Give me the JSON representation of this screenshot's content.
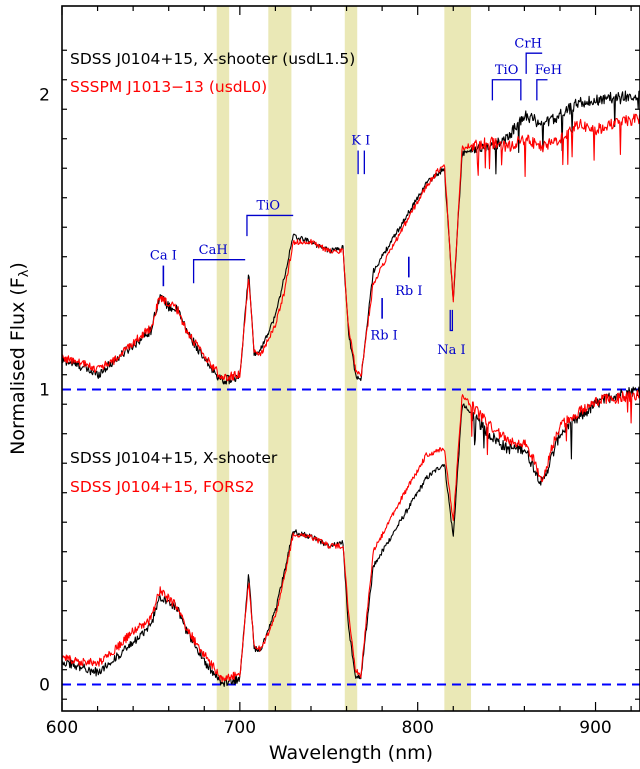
{
  "chart_data": {
    "type": "line",
    "xlabel": "Wavelength (nm)",
    "ylabel": "Normalised Flux  (F",
    "ylabel_sub": "λ",
    "ylabel_close": ")",
    "xlim": [
      600,
      925
    ],
    "ylim": [
      -0.09,
      2.3
    ],
    "xticks": [
      600,
      700,
      800,
      900
    ],
    "yticks": [
      0,
      1,
      2
    ],
    "reference_lines": [
      0,
      1
    ],
    "shaded_bands": [
      [
        687,
        694
      ],
      [
        716,
        729
      ],
      [
        759,
        766
      ],
      [
        815,
        830
      ]
    ],
    "upper_legend": [
      {
        "text": "SDSS J0104+15, X-shooter (usdL1.5)",
        "color": "#000000"
      },
      {
        "text": "SSSPM J1013−13 (usdL0)",
        "color": "#ff0000"
      }
    ],
    "lower_legend": [
      {
        "text": "SDSS J0104+15, X-shooter",
        "color": "#000000"
      },
      {
        "text": "SDSS J0104+15, FORS2",
        "color": "#ff0000"
      }
    ],
    "line_annotations": [
      {
        "label": "Ca I",
        "wavelength": 657
      },
      {
        "label": "CaH",
        "wavelength": 685
      },
      {
        "label": "TiO",
        "wavelength": 716
      },
      {
        "label": "K I",
        "wavelength": 768
      },
      {
        "label": "Rb I",
        "wavelength": 780
      },
      {
        "label": "Rb I",
        "wavelength": 795
      },
      {
        "label": "Na I",
        "wavelength": 819
      },
      {
        "label": "TiO",
        "wavelength": 850
      },
      {
        "label": "CrH",
        "wavelength": 861
      },
      {
        "label": "FeH",
        "wavelength": 869
      }
    ],
    "series": [
      {
        "name": "SDSS J0104+15, X-shooter (usdL1.5)",
        "color": "#000000",
        "points": [
          [
            600,
            1.1
          ],
          [
            610,
            1.08
          ],
          [
            620,
            1.05
          ],
          [
            630,
            1.1
          ],
          [
            640,
            1.15
          ],
          [
            650,
            1.2
          ],
          [
            655,
            1.32
          ],
          [
            660,
            1.28
          ],
          [
            665,
            1.27
          ],
          [
            670,
            1.2
          ],
          [
            680,
            1.1
          ],
          [
            690,
            1.03
          ],
          [
            700,
            1.04
          ],
          [
            705,
            1.4
          ],
          [
            708,
            1.12
          ],
          [
            712,
            1.14
          ],
          [
            720,
            1.25
          ],
          [
            725,
            1.38
          ],
          [
            730,
            1.52
          ],
          [
            740,
            1.5
          ],
          [
            750,
            1.47
          ],
          [
            758,
            1.48
          ],
          [
            761,
            1.2
          ],
          [
            765,
            1.05
          ],
          [
            768,
            1.03
          ],
          [
            775,
            1.4
          ],
          [
            790,
            1.55
          ],
          [
            805,
            1.7
          ],
          [
            815,
            1.75
          ],
          [
            820,
            1.3
          ],
          [
            825,
            1.8
          ],
          [
            840,
            1.82
          ],
          [
            850,
            1.85
          ],
          [
            860,
            1.93
          ],
          [
            870,
            1.9
          ],
          [
            880,
            1.93
          ],
          [
            890,
            1.97
          ],
          [
            900,
            1.98
          ],
          [
            910,
            1.99
          ],
          [
            925,
            2.0
          ]
        ]
      },
      {
        "name": "SSSPM J1013−13 (usdL0)",
        "color": "#ff0000",
        "points": [
          [
            600,
            1.11
          ],
          [
            610,
            1.09
          ],
          [
            620,
            1.07
          ],
          [
            630,
            1.1
          ],
          [
            640,
            1.16
          ],
          [
            650,
            1.21
          ],
          [
            655,
            1.31
          ],
          [
            660,
            1.29
          ],
          [
            665,
            1.27
          ],
          [
            670,
            1.2
          ],
          [
            680,
            1.11
          ],
          [
            690,
            1.04
          ],
          [
            700,
            1.05
          ],
          [
            705,
            1.38
          ],
          [
            708,
            1.13
          ],
          [
            712,
            1.12
          ],
          [
            720,
            1.22
          ],
          [
            725,
            1.33
          ],
          [
            730,
            1.5
          ],
          [
            740,
            1.5
          ],
          [
            750,
            1.47
          ],
          [
            758,
            1.47
          ],
          [
            761,
            1.22
          ],
          [
            765,
            1.07
          ],
          [
            768,
            1.04
          ],
          [
            775,
            1.36
          ],
          [
            790,
            1.53
          ],
          [
            805,
            1.69
          ],
          [
            815,
            1.77
          ],
          [
            820,
            1.3
          ],
          [
            825,
            1.82
          ],
          [
            840,
            1.84
          ],
          [
            850,
            1.82
          ],
          [
            860,
            1.85
          ],
          [
            870,
            1.82
          ],
          [
            880,
            1.85
          ],
          [
            890,
            1.9
          ],
          [
            900,
            1.88
          ],
          [
            910,
            1.9
          ],
          [
            925,
            1.92
          ]
        ]
      },
      {
        "name": "SDSS J0104+15, X-shooter",
        "color": "#000000",
        "points": [
          [
            600,
            0.08
          ],
          [
            610,
            0.06
          ],
          [
            620,
            0.04
          ],
          [
            630,
            0.09
          ],
          [
            640,
            0.14
          ],
          [
            650,
            0.2
          ],
          [
            655,
            0.3
          ],
          [
            660,
            0.28
          ],
          [
            665,
            0.26
          ],
          [
            670,
            0.18
          ],
          [
            680,
            0.08
          ],
          [
            690,
            0.0
          ],
          [
            700,
            0.02
          ],
          [
            705,
            0.38
          ],
          [
            708,
            0.12
          ],
          [
            712,
            0.12
          ],
          [
            720,
            0.25
          ],
          [
            725,
            0.38
          ],
          [
            730,
            0.52
          ],
          [
            740,
            0.5
          ],
          [
            750,
            0.47
          ],
          [
            758,
            0.48
          ],
          [
            761,
            0.2
          ],
          [
            765,
            0.03
          ],
          [
            768,
            0.02
          ],
          [
            775,
            0.4
          ],
          [
            790,
            0.55
          ],
          [
            805,
            0.7
          ],
          [
            815,
            0.75
          ],
          [
            820,
            0.5
          ],
          [
            825,
            0.95
          ],
          [
            840,
            0.85
          ],
          [
            850,
            0.8
          ],
          [
            860,
            0.8
          ],
          [
            870,
            0.68
          ],
          [
            880,
            0.85
          ],
          [
            890,
            0.9
          ],
          [
            900,
            0.95
          ],
          [
            910,
            0.98
          ],
          [
            925,
            1.0
          ]
        ]
      },
      {
        "name": "SDSS J0104+15, FORS2",
        "color": "#ff0000",
        "points": [
          [
            600,
            0.09
          ],
          [
            610,
            0.08
          ],
          [
            620,
            0.07
          ],
          [
            630,
            0.12
          ],
          [
            640,
            0.18
          ],
          [
            650,
            0.22
          ],
          [
            655,
            0.32
          ],
          [
            660,
            0.29
          ],
          [
            665,
            0.26
          ],
          [
            670,
            0.19
          ],
          [
            680,
            0.1
          ],
          [
            690,
            0.02
          ],
          [
            700,
            0.03
          ],
          [
            705,
            0.35
          ],
          [
            708,
            0.13
          ],
          [
            712,
            0.12
          ],
          [
            720,
            0.23
          ],
          [
            725,
            0.36
          ],
          [
            730,
            0.51
          ],
          [
            740,
            0.5
          ],
          [
            750,
            0.47
          ],
          [
            758,
            0.47
          ],
          [
            761,
            0.25
          ],
          [
            765,
            0.05
          ],
          [
            768,
            0.03
          ],
          [
            775,
            0.45
          ],
          [
            790,
            0.62
          ],
          [
            805,
            0.78
          ],
          [
            815,
            0.8
          ],
          [
            820,
            0.55
          ],
          [
            825,
            0.98
          ],
          [
            840,
            0.88
          ],
          [
            850,
            0.83
          ],
          [
            860,
            0.82
          ],
          [
            870,
            0.7
          ],
          [
            880,
            0.88
          ],
          [
            890,
            0.92
          ],
          [
            900,
            0.96
          ],
          [
            910,
            0.97
          ],
          [
            925,
            0.98
          ]
        ]
      }
    ]
  }
}
